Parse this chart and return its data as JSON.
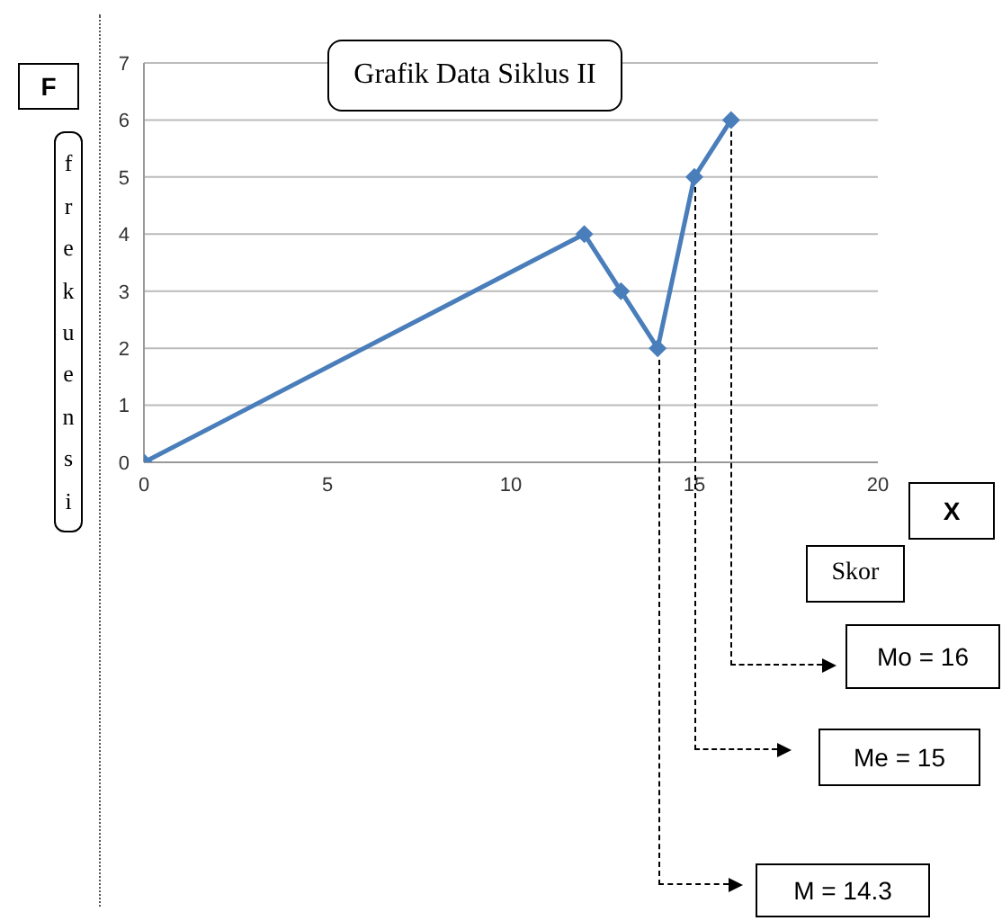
{
  "chart_data": {
    "type": "line",
    "title": "Grafik Data Siklus II",
    "xlabel": "Skor",
    "ylabel": "frekuensi",
    "annotations": [
      "F",
      "X",
      "Mo = 16",
      "Me = 15",
      "M = 14.3"
    ],
    "x": [
      0,
      12,
      13,
      14,
      15,
      16
    ],
    "series": [
      {
        "color": "#4a7ebb",
        "values": [
          0,
          4,
          3,
          2,
          5,
          6
        ]
      }
    ],
    "xlim": [
      0,
      20
    ],
    "xticks": [
      0,
      5,
      10,
      15,
      20
    ],
    "ylim": [
      0,
      7
    ],
    "yticks": [
      0,
      1,
      2,
      3,
      4,
      5,
      6,
      7
    ],
    "grid": "y",
    "marker": "diamond",
    "line_style": "solid",
    "legend": false
  }
}
